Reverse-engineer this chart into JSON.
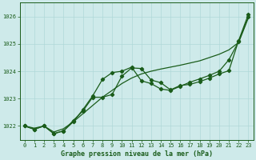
{
  "title": "Graphe pression niveau de la mer (hPa)",
  "background_color": "#ceeaea",
  "grid_color": "#b0d8d8",
  "line_color": "#1a5c1a",
  "ylim": [
    1021.5,
    1026.5
  ],
  "xlim": [
    -0.5,
    23.5
  ],
  "yticks": [
    1022,
    1023,
    1024,
    1025,
    1026
  ],
  "xticks": [
    0,
    1,
    2,
    3,
    4,
    5,
    6,
    7,
    8,
    9,
    10,
    11,
    12,
    13,
    14,
    15,
    16,
    17,
    18,
    19,
    20,
    21,
    22,
    23
  ],
  "series_smooth": [
    1022.0,
    1021.92,
    1022.0,
    1021.78,
    1021.9,
    1022.15,
    1022.45,
    1022.75,
    1023.05,
    1023.3,
    1023.55,
    1023.75,
    1023.9,
    1024.0,
    1024.08,
    1024.15,
    1024.22,
    1024.3,
    1024.38,
    1024.5,
    1024.62,
    1024.78,
    1025.05,
    1025.95
  ],
  "series_upper": [
    1022.0,
    1021.88,
    1022.0,
    1021.72,
    1021.82,
    1022.15,
    1022.6,
    1023.1,
    1023.7,
    1023.95,
    1024.0,
    1024.15,
    1023.65,
    1023.55,
    1023.35,
    1023.3,
    1023.45,
    1023.6,
    1023.72,
    1023.85,
    1024.0,
    1024.42,
    1025.08,
    1025.98
  ],
  "series_lower": [
    1022.0,
    1021.88,
    1022.0,
    1021.72,
    1021.82,
    1022.2,
    1022.55,
    1023.05,
    1023.05,
    1023.15,
    1023.82,
    1024.12,
    1024.1,
    1023.68,
    1023.58,
    1023.32,
    1023.48,
    1023.52,
    1023.62,
    1023.75,
    1023.9,
    1024.02,
    1025.12,
    1026.08
  ]
}
